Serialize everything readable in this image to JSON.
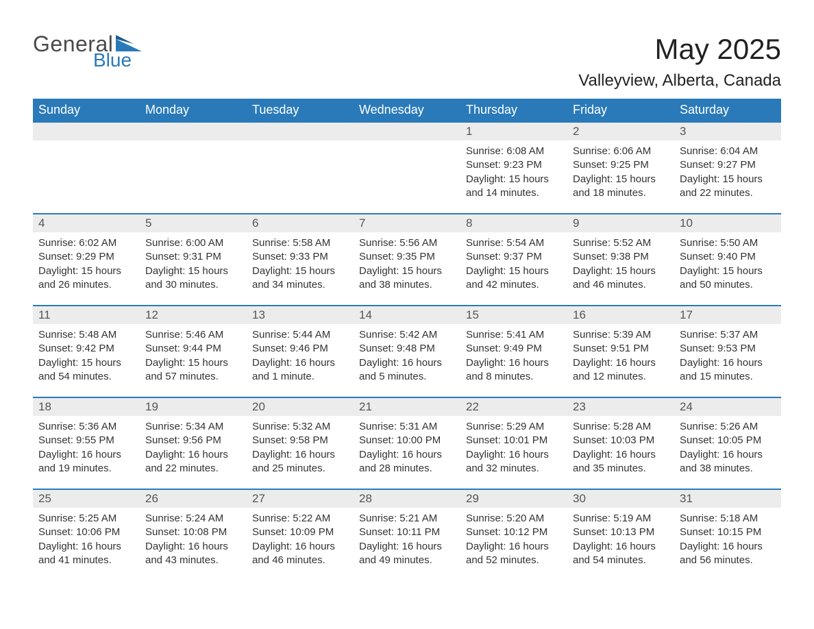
{
  "logo": {
    "text1": "General",
    "text2": "Blue",
    "accent_color": "#2a7ab9"
  },
  "title": "May 2025",
  "location": "Valleyview, Alberta, Canada",
  "colors": {
    "header_bg": "#2a7ab9",
    "header_text": "#ffffff",
    "daynum_bg": "#ececec",
    "daynum_text": "#555555",
    "body_text": "#333333",
    "rule": "#2a7ab9",
    "page_bg": "#ffffff"
  },
  "font": {
    "family": "Arial",
    "title_size_pt": 32,
    "header_size_pt": 14,
    "body_size_pt": 11
  },
  "layout": {
    "columns": 7,
    "rows": 5,
    "first_weekday": "Sunday",
    "month_start_col": 4
  },
  "weekdays": [
    "Sunday",
    "Monday",
    "Tuesday",
    "Wednesday",
    "Thursday",
    "Friday",
    "Saturday"
  ],
  "weeks": [
    [
      null,
      null,
      null,
      null,
      {
        "n": "1",
        "sunrise": "6:08 AM",
        "sunset": "9:23 PM",
        "daylight": "15 hours and 14 minutes."
      },
      {
        "n": "2",
        "sunrise": "6:06 AM",
        "sunset": "9:25 PM",
        "daylight": "15 hours and 18 minutes."
      },
      {
        "n": "3",
        "sunrise": "6:04 AM",
        "sunset": "9:27 PM",
        "daylight": "15 hours and 22 minutes."
      }
    ],
    [
      {
        "n": "4",
        "sunrise": "6:02 AM",
        "sunset": "9:29 PM",
        "daylight": "15 hours and 26 minutes."
      },
      {
        "n": "5",
        "sunrise": "6:00 AM",
        "sunset": "9:31 PM",
        "daylight": "15 hours and 30 minutes."
      },
      {
        "n": "6",
        "sunrise": "5:58 AM",
        "sunset": "9:33 PM",
        "daylight": "15 hours and 34 minutes."
      },
      {
        "n": "7",
        "sunrise": "5:56 AM",
        "sunset": "9:35 PM",
        "daylight": "15 hours and 38 minutes."
      },
      {
        "n": "8",
        "sunrise": "5:54 AM",
        "sunset": "9:37 PM",
        "daylight": "15 hours and 42 minutes."
      },
      {
        "n": "9",
        "sunrise": "5:52 AM",
        "sunset": "9:38 PM",
        "daylight": "15 hours and 46 minutes."
      },
      {
        "n": "10",
        "sunrise": "5:50 AM",
        "sunset": "9:40 PM",
        "daylight": "15 hours and 50 minutes."
      }
    ],
    [
      {
        "n": "11",
        "sunrise": "5:48 AM",
        "sunset": "9:42 PM",
        "daylight": "15 hours and 54 minutes."
      },
      {
        "n": "12",
        "sunrise": "5:46 AM",
        "sunset": "9:44 PM",
        "daylight": "15 hours and 57 minutes."
      },
      {
        "n": "13",
        "sunrise": "5:44 AM",
        "sunset": "9:46 PM",
        "daylight": "16 hours and 1 minute."
      },
      {
        "n": "14",
        "sunrise": "5:42 AM",
        "sunset": "9:48 PM",
        "daylight": "16 hours and 5 minutes."
      },
      {
        "n": "15",
        "sunrise": "5:41 AM",
        "sunset": "9:49 PM",
        "daylight": "16 hours and 8 minutes."
      },
      {
        "n": "16",
        "sunrise": "5:39 AM",
        "sunset": "9:51 PM",
        "daylight": "16 hours and 12 minutes."
      },
      {
        "n": "17",
        "sunrise": "5:37 AM",
        "sunset": "9:53 PM",
        "daylight": "16 hours and 15 minutes."
      }
    ],
    [
      {
        "n": "18",
        "sunrise": "5:36 AM",
        "sunset": "9:55 PM",
        "daylight": "16 hours and 19 minutes."
      },
      {
        "n": "19",
        "sunrise": "5:34 AM",
        "sunset": "9:56 PM",
        "daylight": "16 hours and 22 minutes."
      },
      {
        "n": "20",
        "sunrise": "5:32 AM",
        "sunset": "9:58 PM",
        "daylight": "16 hours and 25 minutes."
      },
      {
        "n": "21",
        "sunrise": "5:31 AM",
        "sunset": "10:00 PM",
        "daylight": "16 hours and 28 minutes."
      },
      {
        "n": "22",
        "sunrise": "5:29 AM",
        "sunset": "10:01 PM",
        "daylight": "16 hours and 32 minutes."
      },
      {
        "n": "23",
        "sunrise": "5:28 AM",
        "sunset": "10:03 PM",
        "daylight": "16 hours and 35 minutes."
      },
      {
        "n": "24",
        "sunrise": "5:26 AM",
        "sunset": "10:05 PM",
        "daylight": "16 hours and 38 minutes."
      }
    ],
    [
      {
        "n": "25",
        "sunrise": "5:25 AM",
        "sunset": "10:06 PM",
        "daylight": "16 hours and 41 minutes."
      },
      {
        "n": "26",
        "sunrise": "5:24 AM",
        "sunset": "10:08 PM",
        "daylight": "16 hours and 43 minutes."
      },
      {
        "n": "27",
        "sunrise": "5:22 AM",
        "sunset": "10:09 PM",
        "daylight": "16 hours and 46 minutes."
      },
      {
        "n": "28",
        "sunrise": "5:21 AM",
        "sunset": "10:11 PM",
        "daylight": "16 hours and 49 minutes."
      },
      {
        "n": "29",
        "sunrise": "5:20 AM",
        "sunset": "10:12 PM",
        "daylight": "16 hours and 52 minutes."
      },
      {
        "n": "30",
        "sunrise": "5:19 AM",
        "sunset": "10:13 PM",
        "daylight": "16 hours and 54 minutes."
      },
      {
        "n": "31",
        "sunrise": "5:18 AM",
        "sunset": "10:15 PM",
        "daylight": "16 hours and 56 minutes."
      }
    ]
  ],
  "labels": {
    "sunrise": "Sunrise: ",
    "sunset": "Sunset: ",
    "daylight": "Daylight: "
  }
}
